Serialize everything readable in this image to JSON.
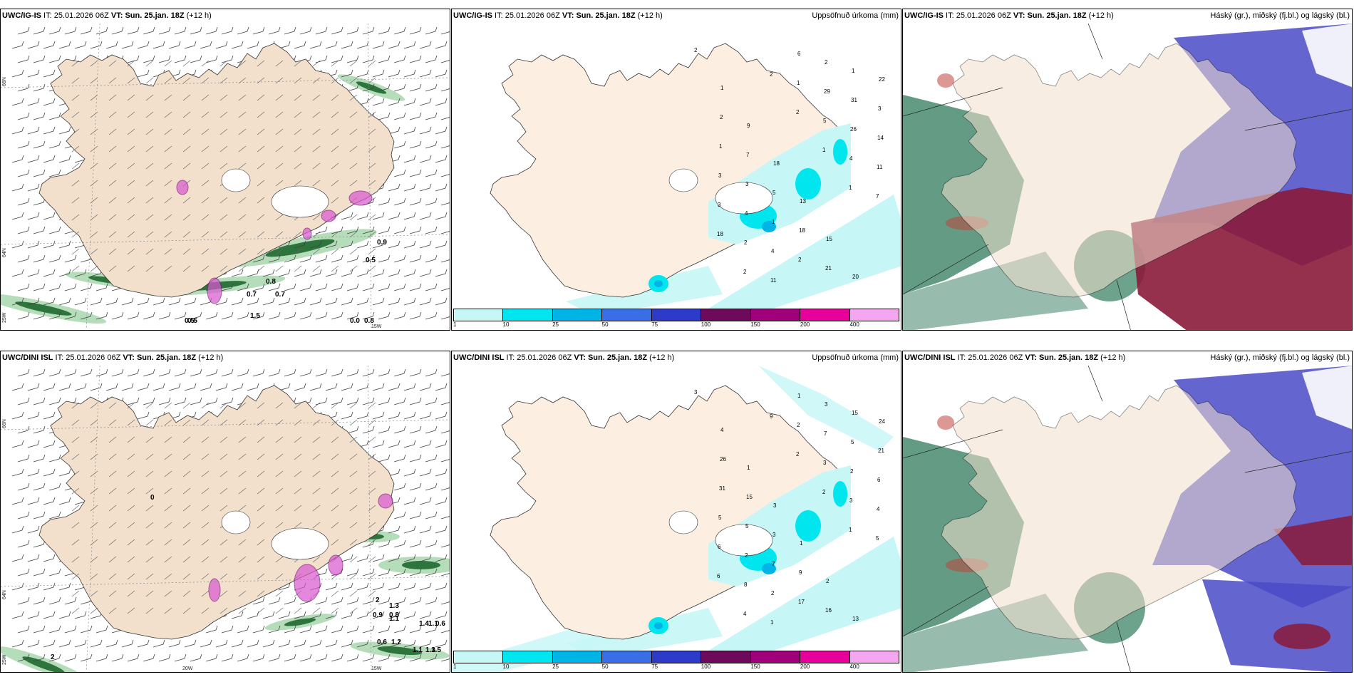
{
  "panels": [
    {
      "id": "p11",
      "kind": "wind",
      "title_model": "UWC/IG-IS",
      "title_it_label": "IT:",
      "title_it": "25.01.2026 06Z",
      "title_vt_label": "VT:",
      "title_vt": "Sun. 25.jan. 18Z",
      "title_lead": "(+12 h)",
      "title_right": "",
      "lat_labels": [
        "66N",
        "64N",
        "25W"
      ],
      "lon_labels": [
        "15W"
      ],
      "values": [
        "0.9",
        "0.5",
        "0.7",
        "0.5",
        "0.8",
        "1.5",
        "0.5",
        "0.0",
        "0.8",
        "0.7"
      ]
    },
    {
      "id": "p12",
      "kind": "precip",
      "title_model": "UWC/IG-IS",
      "title_it_label": "IT:",
      "title_it": "25.01.2026 06Z",
      "title_vt_label": "VT:",
      "title_vt": "Sun. 25.jan. 18Z",
      "title_lead": "(+12 h)",
      "title_right": "Uppsöfnuð úrkoma (mm)",
      "values": [
        "2",
        "1",
        "9",
        "18",
        "13",
        "15",
        "20",
        "22",
        "2",
        "7",
        "5",
        "18",
        "21",
        "1",
        "3",
        "1",
        "3",
        "1",
        "2",
        "2",
        "31",
        "14",
        "3",
        "4",
        "4",
        "6",
        "29",
        "26",
        "11",
        "3",
        "2",
        "11",
        "1",
        "5",
        "4",
        "7",
        "18",
        "2",
        "2",
        "2",
        "1",
        "1"
      ]
    },
    {
      "id": "p13",
      "kind": "cloud",
      "title_model": "UWC/IG-IS",
      "title_it_label": "IT:",
      "title_it": "25.01.2026 06Z",
      "title_vt_label": "VT:",
      "title_vt": "Sun. 25.jan. 18Z",
      "title_lead": "(+12 h)",
      "title_right": "Háský (gr.), miðský (fj.bl.) og lágský (bl.)"
    },
    {
      "id": "p21",
      "kind": "wind",
      "title_model": "UWC/DINI ISL",
      "title_it_label": "IT:",
      "title_it": "25.01.2026 06Z",
      "title_vt_label": "VT:",
      "title_vt": "Sun. 25.jan. 18Z",
      "title_lead": "(+12 h)",
      "title_right": "",
      "lat_labels": [
        "66N",
        "64N",
        "25W"
      ],
      "lon_labels": [
        "20W",
        "15W"
      ],
      "values": [
        "2",
        "1.3",
        "1.1",
        "0.9",
        "0.8",
        "1.4",
        "1.1",
        "0.6",
        "0.6",
        "1.2",
        "1.1",
        "1.3",
        "1.5",
        "2",
        "0"
      ]
    },
    {
      "id": "p22",
      "kind": "precip",
      "title_model": "UWC/DINI ISL",
      "title_it_label": "IT:",
      "title_it": "25.01.2026 06Z",
      "title_vt_label": "VT:",
      "title_vt": "Sun. 25.jan. 18Z",
      "title_lead": "(+12 h)",
      "title_right": "Uppsöfnuð úrkoma (mm)",
      "values": [
        "3",
        "4",
        "1",
        "3",
        "1",
        "2",
        "13",
        "24",
        "26",
        "15",
        "3",
        "9",
        "16",
        "15",
        "21",
        "31",
        "5",
        "7",
        "17",
        "3",
        "5",
        "6",
        "5",
        "2",
        "2",
        "1",
        "7",
        "2",
        "4",
        "6",
        "8",
        "1",
        "2",
        "3",
        "3",
        "5",
        "6",
        "4",
        "9",
        "2",
        "2",
        "1"
      ]
    },
    {
      "id": "p23",
      "kind": "cloud",
      "title_model": "UWC/DINI ISL",
      "title_it_label": "IT:",
      "title_it": "25.01.2026 06Z",
      "title_vt_label": "VT:",
      "title_vt": "Sun. 25.jan. 18Z",
      "title_lead": "(+12 h)",
      "title_right": "Háský (gr.), miðský (fj.bl.) og lágský (bl.)"
    }
  ],
  "colorbar": {
    "labels": [
      "1",
      "10",
      "25",
      "50",
      "75",
      "100",
      "150",
      "200",
      "400"
    ],
    "colors": [
      "#c6f6f6",
      "#00e5ee",
      "#00b4e6",
      "#3a6ee6",
      "#2d3cc8",
      "#6e0a5a",
      "#a0007a",
      "#e8009a",
      "#f5a6f0"
    ]
  },
  "colors": {
    "land": "#f2e0cc",
    "land_precip": "#fcefe2",
    "wind_green": "#2e9e3a",
    "wind_pink": "#d957d0",
    "cloud_high": "#2f7a5c",
    "cloud_mid": "#4a4ac8",
    "cloud_low": "#8a1a3a"
  }
}
